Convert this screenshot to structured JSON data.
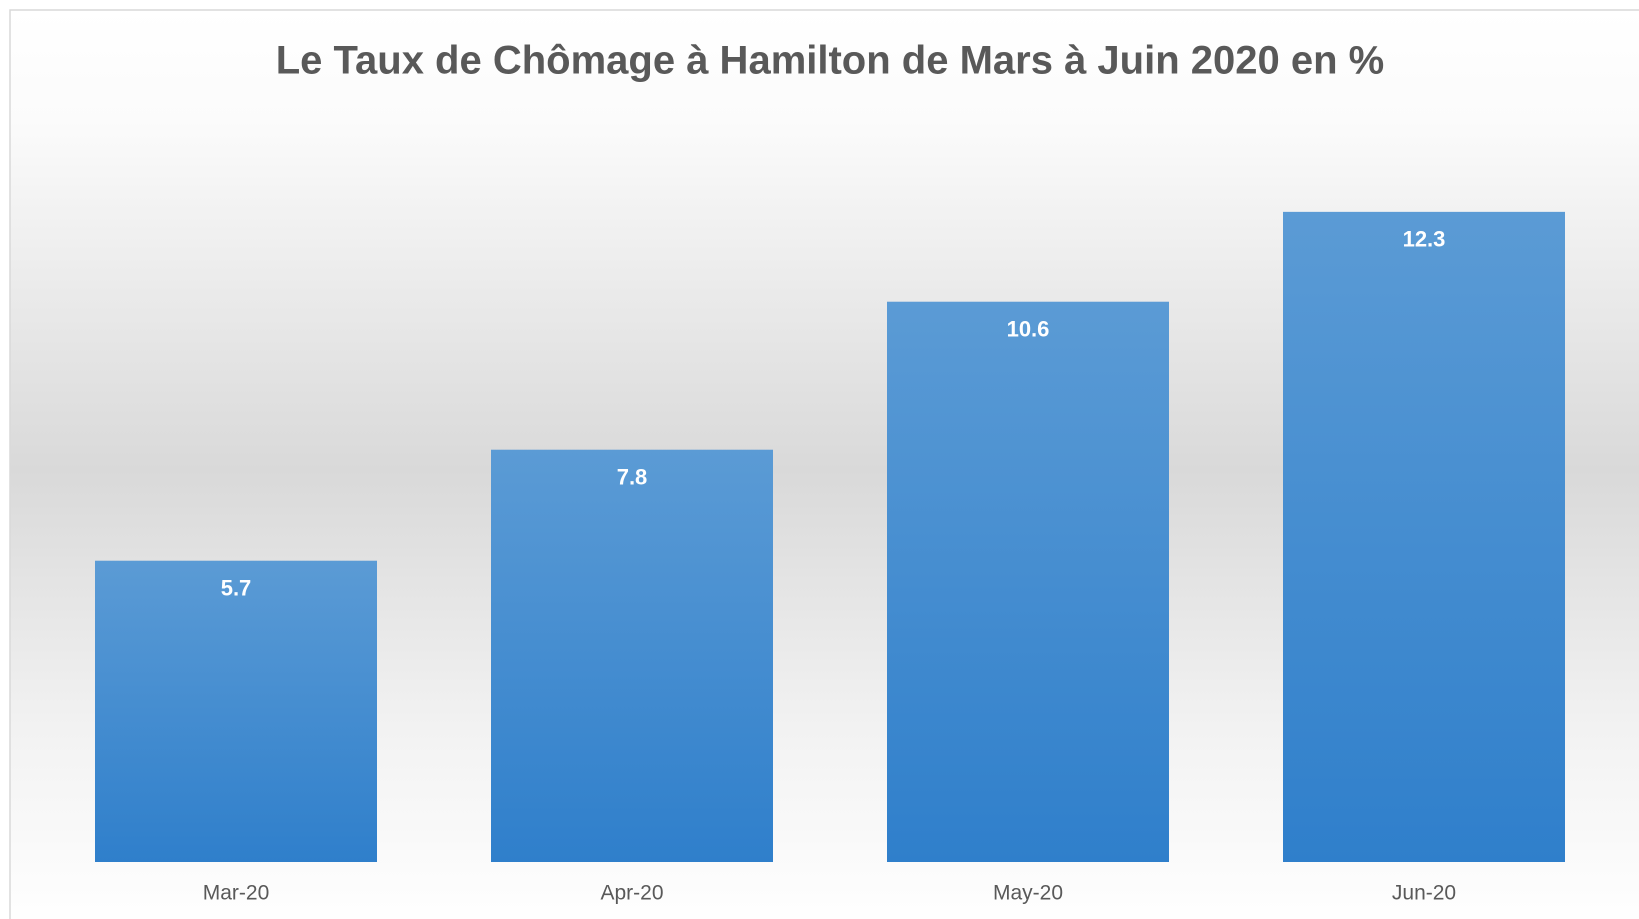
{
  "chart_data": {
    "type": "bar",
    "title": "Le Taux de Chômage à Hamilton de Mars à Juin 2020 en %",
    "categories": [
      "Mar-20",
      "Apr-20",
      "May-20",
      "Jun-20"
    ],
    "values": [
      5.7,
      7.8,
      10.6,
      12.3
    ],
    "color": "#5b9bd5",
    "ylim": [
      0,
      14
    ]
  }
}
